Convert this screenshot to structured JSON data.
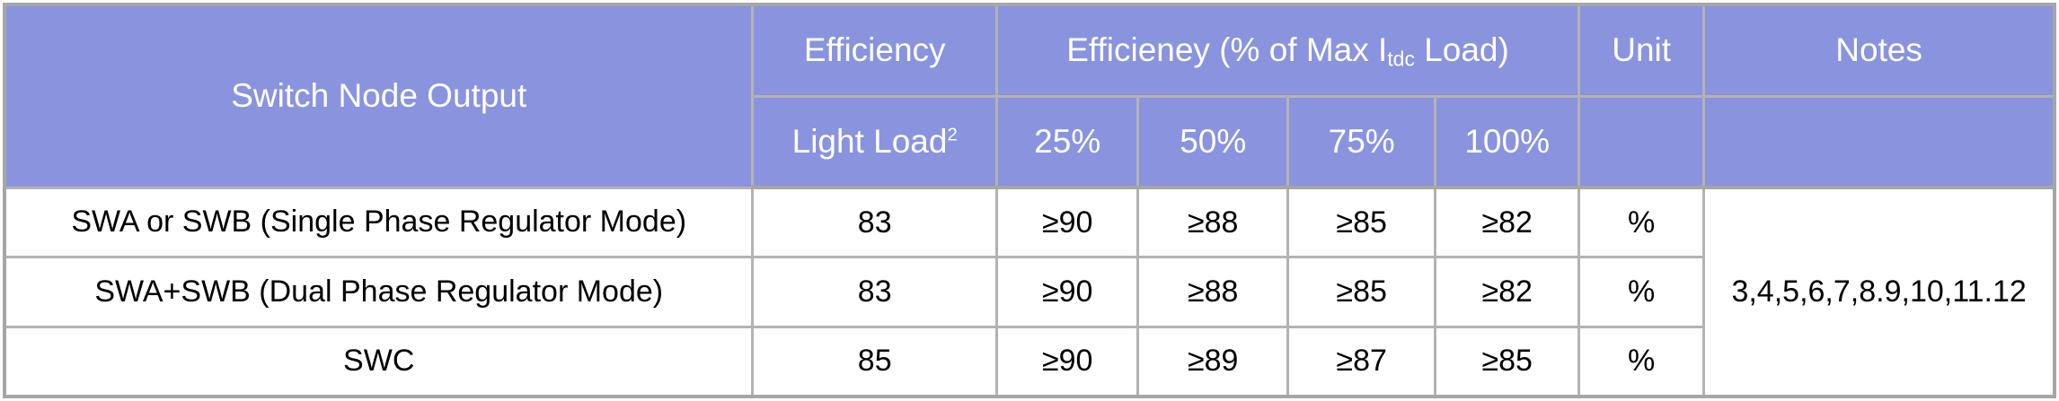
{
  "colors": {
    "header_bg": "#8a93de",
    "header_text": "#ffffff",
    "inner_border": "#b3b3b3",
    "outer_border": "#a6a6a6",
    "body_text": "#000000",
    "cell_bg": "#ffffff"
  },
  "table": {
    "header": {
      "switch_node_output": "Switch Node Output",
      "efficiency": "Efficiency",
      "efficiency_pct_prefix": "Efficieney (% of Max I",
      "efficiency_pct_sub": "tdc",
      "efficiency_pct_suffix": " Load)",
      "unit": "Unit",
      "notes": "Notes"
    },
    "subheader": {
      "light_load": "Light Load",
      "light_load_sup": "2",
      "p25": "25%",
      "p50": "50%",
      "p75": "75%",
      "p100": "100%"
    },
    "rows": [
      {
        "output": "SWA or SWB (Single Phase Regulator Mode)",
        "light_load": "83",
        "p25": "≥90",
        "p50": "≥88",
        "p75": "≥85",
        "p100": "≥82",
        "unit": "%"
      },
      {
        "output": "SWA+SWB (Dual Phase Regulator Mode)",
        "light_load": "83",
        "p25": "≥90",
        "p50": "≥88",
        "p75": "≥85",
        "p100": "≥82",
        "unit": "%"
      },
      {
        "output": "SWC",
        "light_load": "85",
        "p25": "≥90",
        "p50": "≥89",
        "p75": "≥87",
        "p100": "≥85",
        "unit": "%"
      }
    ],
    "notes_value": "3,4,5,6,7,8.9,10,11.12"
  }
}
